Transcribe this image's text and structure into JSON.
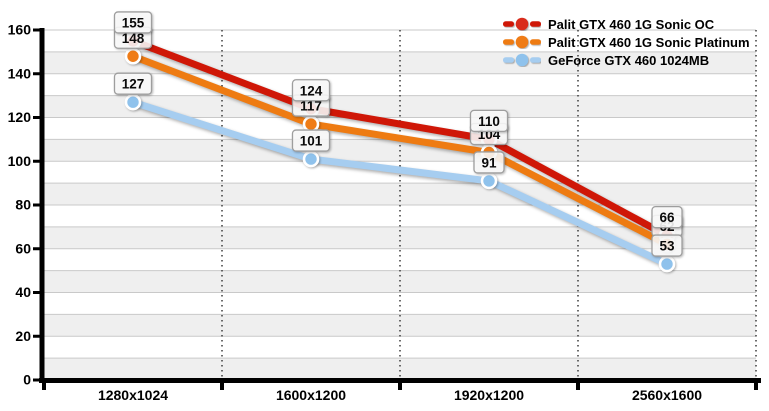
{
  "chart_data": {
    "type": "line",
    "title": "",
    "xlabel": "",
    "ylabel": "",
    "categories": [
      "1280x1024",
      "1600x1200",
      "1920x1200",
      "2560x1600"
    ],
    "series": [
      {
        "name": "Palit GTX 460 1G Sonic OC",
        "values": [
          155,
          124,
          110,
          66
        ],
        "color": "#cf1707",
        "marker_color": "#d92c1c"
      },
      {
        "name": "Palit GTX 460 1G Sonic Platinum",
        "values": [
          148,
          117,
          104,
          62
        ],
        "color": "#ee7b12",
        "marker_color": "#ef7c17"
      },
      {
        "name": "GeForce GTX 460 1024MB",
        "values": [
          127,
          101,
          91,
          53
        ],
        "color": "#a6cdf0",
        "marker_color": "#8fc2ec"
      }
    ],
    "ylim": [
      0,
      160
    ],
    "ytick_step": 20,
    "grid_step": 10,
    "grid": true,
    "legend_position": "top-right",
    "yticks": [
      "0",
      "20",
      "40",
      "60",
      "80",
      "100",
      "120",
      "140",
      "160"
    ],
    "data_labels_shown": true
  },
  "colors": {
    "band_gray": "#efefef",
    "band_white": "#ffffff",
    "gridline": "#c9c9c9",
    "dotted_divider": "#3c3c3c",
    "axis": "#000000",
    "label_box_fill": "rgba(255,255,255,0.87)",
    "label_box_border": "#9e9e9e",
    "text": "#000000"
  }
}
